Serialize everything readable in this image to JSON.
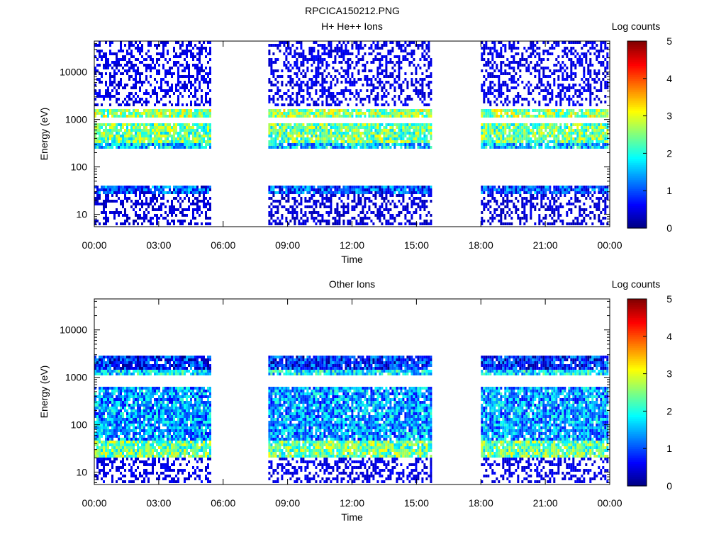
{
  "figure_title": "RPCICA150212.PNG",
  "chart_data": [
    {
      "type": "heatmap",
      "title": "H+ He++ Ions",
      "xlabel": "Time",
      "ylabel": "Energy (eV)",
      "x_ticks": [
        "00:00",
        "03:00",
        "06:00",
        "09:00",
        "12:00",
        "15:00",
        "18:00",
        "21:00",
        "00:00"
      ],
      "y_ticks": [
        "10",
        "100",
        "1000",
        "10000"
      ],
      "y_scale": "log",
      "ylim": [
        5.5,
        45000
      ],
      "xlim_hours": [
        0,
        24
      ],
      "data_intervals_hours": [
        [
          0.0,
          5.4
        ],
        [
          8.1,
          15.7
        ],
        [
          18.0,
          23.9
        ]
      ],
      "bands_log_counts": [
        {
          "energy_eV": [
            1150,
            1750
          ],
          "level": 2.6
        },
        {
          "energy_eV": [
            330,
            800
          ],
          "level": 2.4
        },
        {
          "energy_eV": [
            230,
            330
          ],
          "level": 1.6
        },
        {
          "energy_eV": [
            25,
            40
          ],
          "level": 1.0
        },
        {
          "energy_eV": [
            2000,
            45000
          ],
          "level": 0.3
        },
        {
          "energy_eV": [
            6,
            25
          ],
          "level": 0.2
        }
      ],
      "colorbar": {
        "label": "Log counts",
        "min": 0,
        "max": 5,
        "ticks": [
          "0",
          "1",
          "2",
          "3",
          "4",
          "5"
        ]
      },
      "grid": false
    },
    {
      "type": "heatmap",
      "title": "Other Ions",
      "xlabel": "Time",
      "ylabel": "Energy (eV)",
      "x_ticks": [
        "00:00",
        "03:00",
        "06:00",
        "09:00",
        "12:00",
        "15:00",
        "18:00",
        "21:00",
        "00:00"
      ],
      "y_ticks": [
        "10",
        "100",
        "1000",
        "10000"
      ],
      "y_scale": "log",
      "ylim": [
        5.5,
        45000
      ],
      "xlim_hours": [
        0,
        24
      ],
      "data_intervals_hours": [
        [
          0.0,
          5.4
        ],
        [
          8.1,
          15.7
        ],
        [
          18.0,
          23.9
        ]
      ],
      "bands_log_counts": [
        {
          "energy_eV": [
            20,
            45
          ],
          "level": 2.4
        },
        {
          "energy_eV": [
            45,
            600
          ],
          "level": 1.4
        },
        {
          "energy_eV": [
            1100,
            1500
          ],
          "level": 1.8
        },
        {
          "energy_eV": [
            1500,
            3000
          ],
          "level": 0.8
        },
        {
          "energy_eV": [
            6,
            20
          ],
          "level": 0.3
        }
      ],
      "colorbar": {
        "label": "Log counts",
        "min": 0,
        "max": 5,
        "ticks": [
          "0",
          "1",
          "2",
          "3",
          "4",
          "5"
        ]
      },
      "grid": false
    }
  ]
}
